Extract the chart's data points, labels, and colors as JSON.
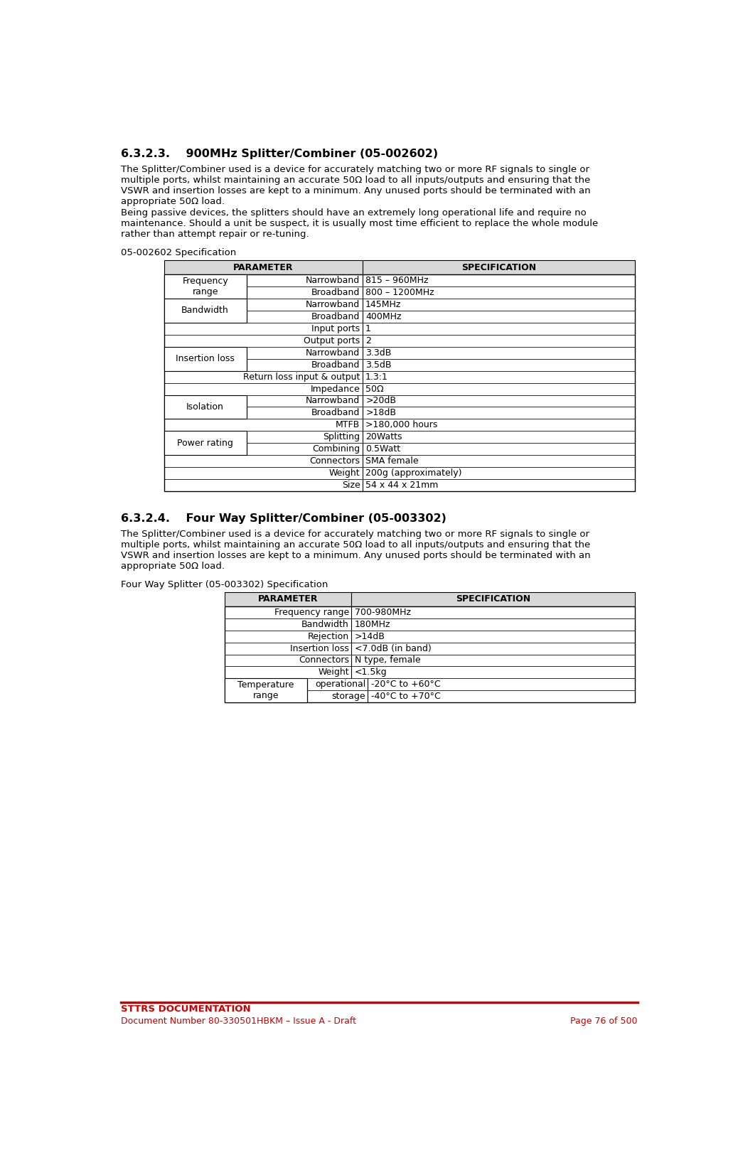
{
  "page_bg": "#ffffff",
  "section1_heading": "6.3.2.3.    900MHz Splitter/Combiner (05-002602)",
  "section1_body1": "The Splitter/Combiner used is a device for accurately matching two or more RF signals to single or\nmultiple ports, whilst maintaining an accurate 50Ω load to all inputs/outputs and ensuring that the\nVSWR and insertion losses are kept to a minimum. Any unused ports should be terminated with an\nappropriate 50Ω load.\nBeing passive devices, the splitters should have an extremely long operational life and require no\nmaintenance. Should a unit be suspect, it is usually most time efficient to replace the whole module\nrather than attempt repair or re-tuning.",
  "table1_title": "05-002602 Specification",
  "table1_header": [
    "PARAMETER",
    "SPECIFICATION"
  ],
  "section2_heading": "6.3.2.4.    Four Way Splitter/Combiner (05-003302)",
  "section2_body": "The Splitter/Combiner used is a device for accurately matching two or more RF signals to single or\nmultiple ports, whilst maintaining an accurate 50Ω load to all inputs/outputs and ensuring that the\nVSWR and insertion losses are kept to a minimum. Any unused ports should be terminated with an\nappropriate 50Ω load.",
  "table2_title": "Four Way Splitter (05-003302) Specification",
  "table2_header": [
    "PARAMETER",
    "SPECIFICATION"
  ],
  "footer_line_color": "#cc0000",
  "footer_text_color": "#cc0000",
  "footer_text1": "STTRS DOCUMENTATION",
  "footer_text2": "Document Number 80-330501HBKM – Issue A - Draft",
  "footer_text3": "Page 76 of 500",
  "header_bg": "#d8d8d8",
  "font_family": "DejaVu Sans",
  "body_fontsize": 9.5,
  "table_fontsize": 9.0,
  "heading_fontsize": 11.5
}
